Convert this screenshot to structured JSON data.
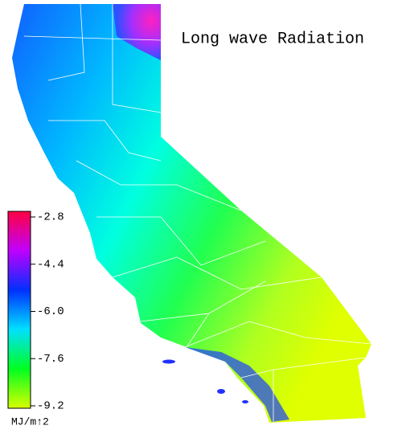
{
  "title": "Long wave Radiation",
  "colorbar": {
    "unit": "MJ/m↑2",
    "clim": [
      -9.2,
      -2.8
    ],
    "ticks": [
      -2.8,
      -4.4,
      {
        "value": -6,
        "label": "-6.0"
      },
      -7.6,
      -9.2
    ],
    "colors": [
      "#d8ff00",
      "#00ff20",
      "#00e0ff",
      "#0030ff",
      "#c000ff",
      "#ff0040"
    ]
  }
}
